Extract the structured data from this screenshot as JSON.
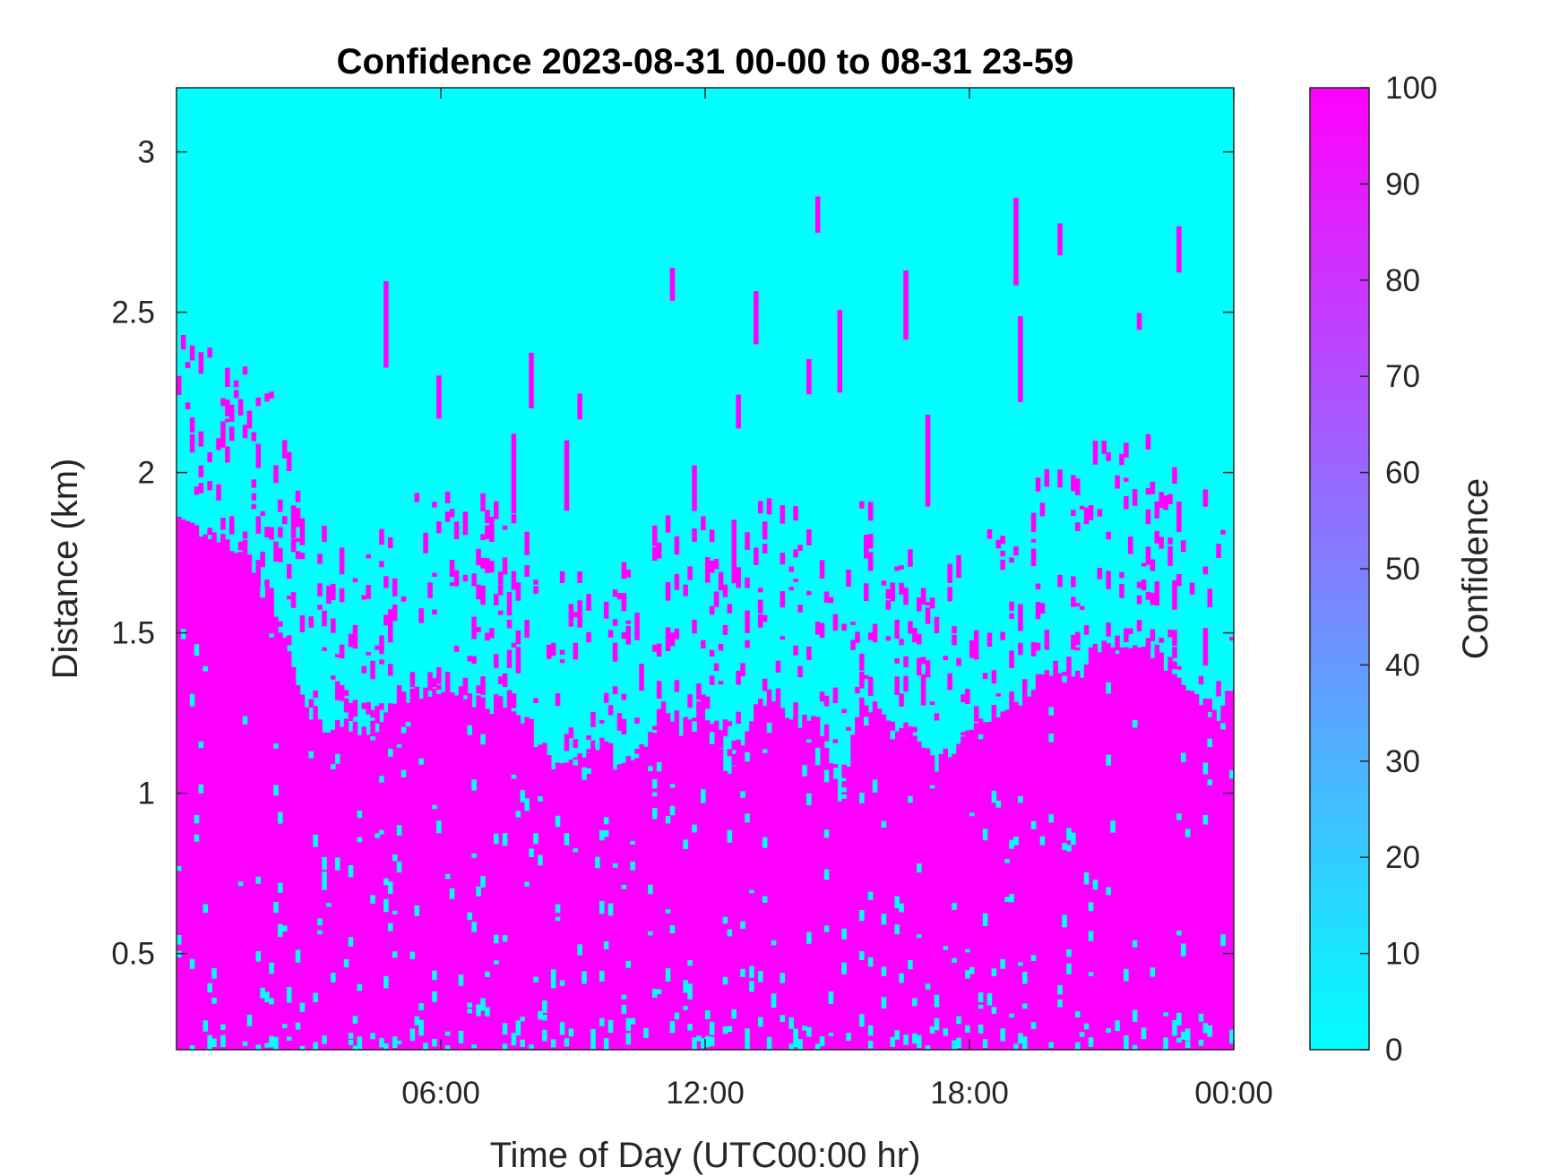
{
  "colors": {
    "low": "#00ffff",
    "high": "#ff00ff",
    "axis": "#262626",
    "background": "#ffffff"
  },
  "chart_data": {
    "type": "heatmap",
    "title": "Confidence 2023-08-31 00-00 to 08-31 23-59",
    "xlabel": "Time of Day (UTC00:00 hr)",
    "ylabel": "Distance (km)",
    "colorbar_label": "Confidence",
    "xlim": [
      0,
      24
    ],
    "ylim": [
      0.2,
      3.2
    ],
    "x_ticks": [
      {
        "value": 6,
        "label": "06:00"
      },
      {
        "value": 12,
        "label": "12:00"
      },
      {
        "value": 18,
        "label": "18:00"
      },
      {
        "value": 24,
        "label": "00:00"
      }
    ],
    "y_ticks": [
      {
        "value": 0.5,
        "label": "0.5"
      },
      {
        "value": 1,
        "label": "1"
      },
      {
        "value": 1.5,
        "label": "1.5"
      },
      {
        "value": 2,
        "label": "2"
      },
      {
        "value": 2.5,
        "label": "2.5"
      },
      {
        "value": 3,
        "label": "3"
      }
    ],
    "colorbar_range": [
      0,
      100
    ],
    "colorbar_ticks": [
      "0",
      "10",
      "20",
      "30",
      "40",
      "50",
      "60",
      "70",
      "80",
      "90",
      "100"
    ],
    "colormap": "cool",
    "high_confidence_top_km": {
      "hours": [
        0,
        0.5,
        1,
        1.5,
        2,
        2.5,
        3,
        3.5,
        4,
        4.5,
        5,
        5.5,
        6,
        6.5,
        7,
        7.5,
        8,
        8.5,
        9,
        9.5,
        10,
        10.5,
        11,
        11.5,
        12,
        12.5,
        13,
        13.5,
        14,
        14.5,
        15,
        15.5,
        16,
        16.5,
        17,
        17.5,
        18,
        18.5,
        19,
        19.5,
        20,
        20.5,
        21,
        21.5,
        22,
        22.5,
        23,
        23.5,
        24
      ],
      "values": [
        1.85,
        1.8,
        1.8,
        1.75,
        1.65,
        1.45,
        1.25,
        1.2,
        1.2,
        1.2,
        1.3,
        1.3,
        1.35,
        1.3,
        1.25,
        1.3,
        1.2,
        1.1,
        1.15,
        1.15,
        1.1,
        1.15,
        1.25,
        1.2,
        1.3,
        1.05,
        1.25,
        1.3,
        1.25,
        1.2,
        1.0,
        1.3,
        1.25,
        1.2,
        1.1,
        1.1,
        1.2,
        1.25,
        1.3,
        1.35,
        1.4,
        1.4,
        1.45,
        1.45,
        1.45,
        1.4,
        1.3,
        1.25,
        1.3
      ]
    }
  }
}
